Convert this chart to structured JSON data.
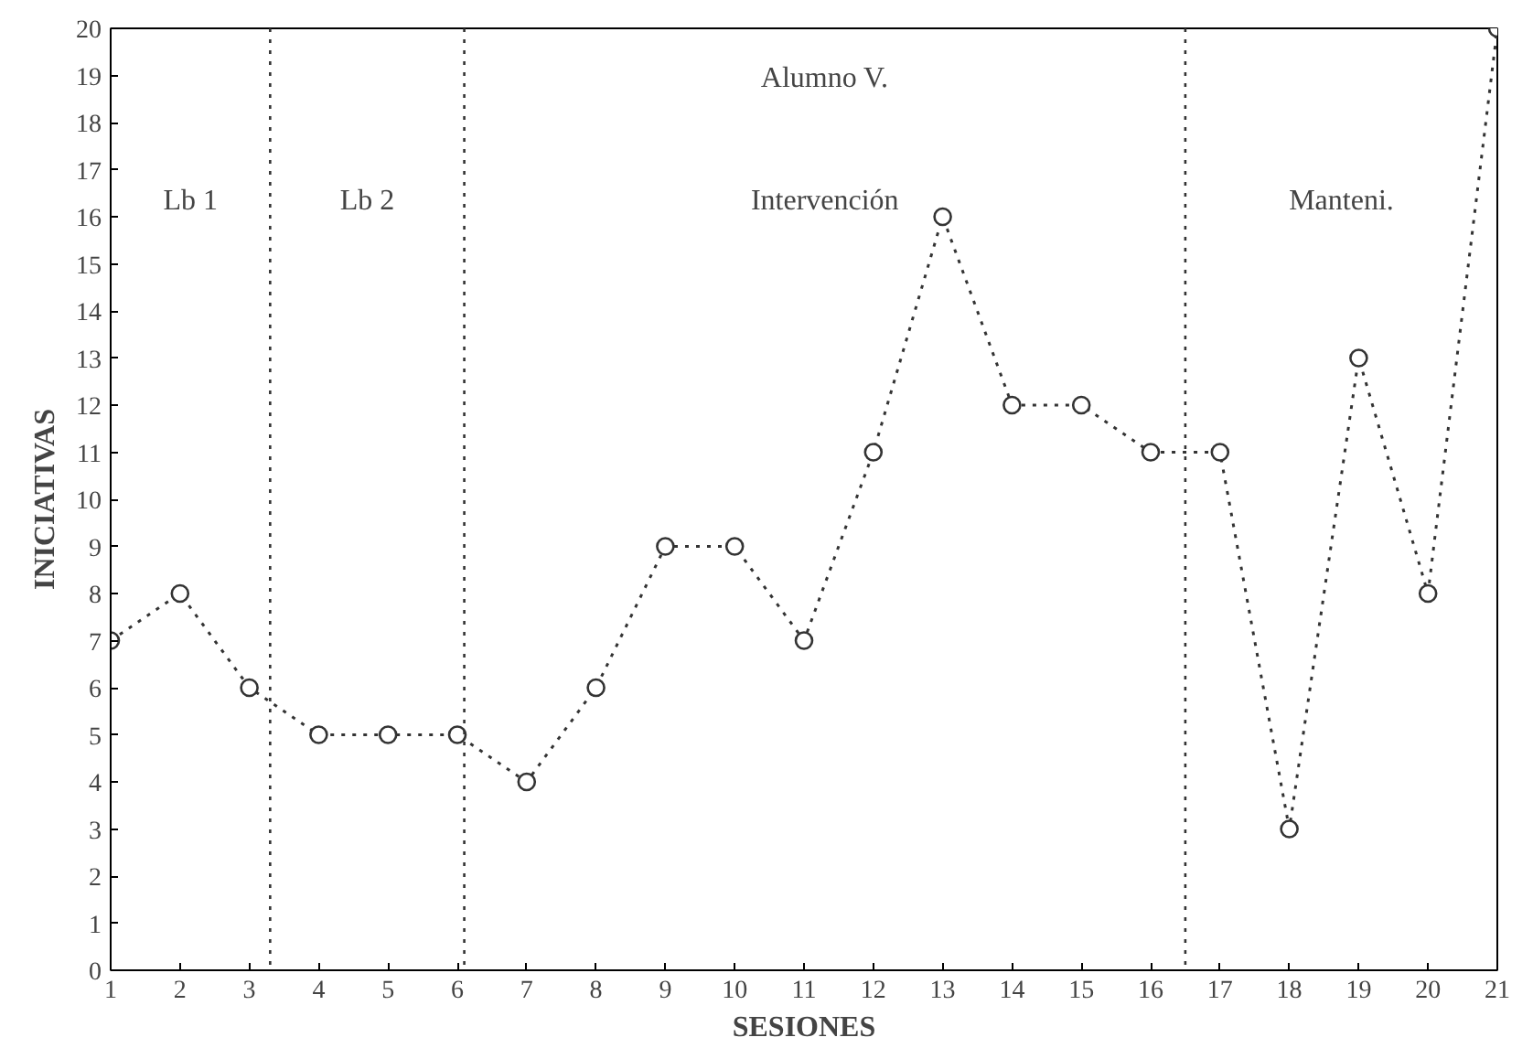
{
  "chart_data": {
    "type": "line",
    "title": "Alumno V.",
    "xlabel": "SESIONES",
    "ylabel": "INICIATIVAS",
    "x": [
      1,
      2,
      3,
      4,
      5,
      6,
      7,
      8,
      9,
      10,
      11,
      12,
      13,
      14,
      15,
      16,
      17,
      18,
      19,
      20,
      21
    ],
    "series": [
      {
        "color": "#333333",
        "values": [
          7,
          8,
          6,
          5,
          5,
          5,
          4,
          6,
          9,
          9,
          7,
          11,
          16,
          12,
          12,
          11,
          11,
          3,
          13,
          8,
          20
        ]
      }
    ],
    "xlim": [
      1,
      21
    ],
    "ylim": [
      0,
      20
    ],
    "xticks": [
      1,
      2,
      3,
      4,
      5,
      6,
      7,
      8,
      9,
      10,
      11,
      12,
      13,
      14,
      15,
      16,
      17,
      18,
      19,
      20,
      21
    ],
    "yticks": [
      0,
      1,
      2,
      3,
      4,
      5,
      6,
      7,
      8,
      9,
      10,
      11,
      12,
      13,
      14,
      15,
      16,
      17,
      18,
      19,
      20
    ],
    "ref_lines": [
      {
        "axis": "x",
        "value": 3.3,
        "line_style": "dotted",
        "color": "#333333"
      },
      {
        "axis": "x",
        "value": 6.1,
        "line_style": "dotted",
        "color": "#333333"
      },
      {
        "axis": "x",
        "value": 16.5,
        "line_style": "dotted",
        "color": "#333333"
      }
    ],
    "annotations": [
      "Lb 1",
      "Lb 2",
      "Intervención",
      "Manteni."
    ],
    "marker": "circle",
    "line_style": "dotted",
    "grid": false
  }
}
